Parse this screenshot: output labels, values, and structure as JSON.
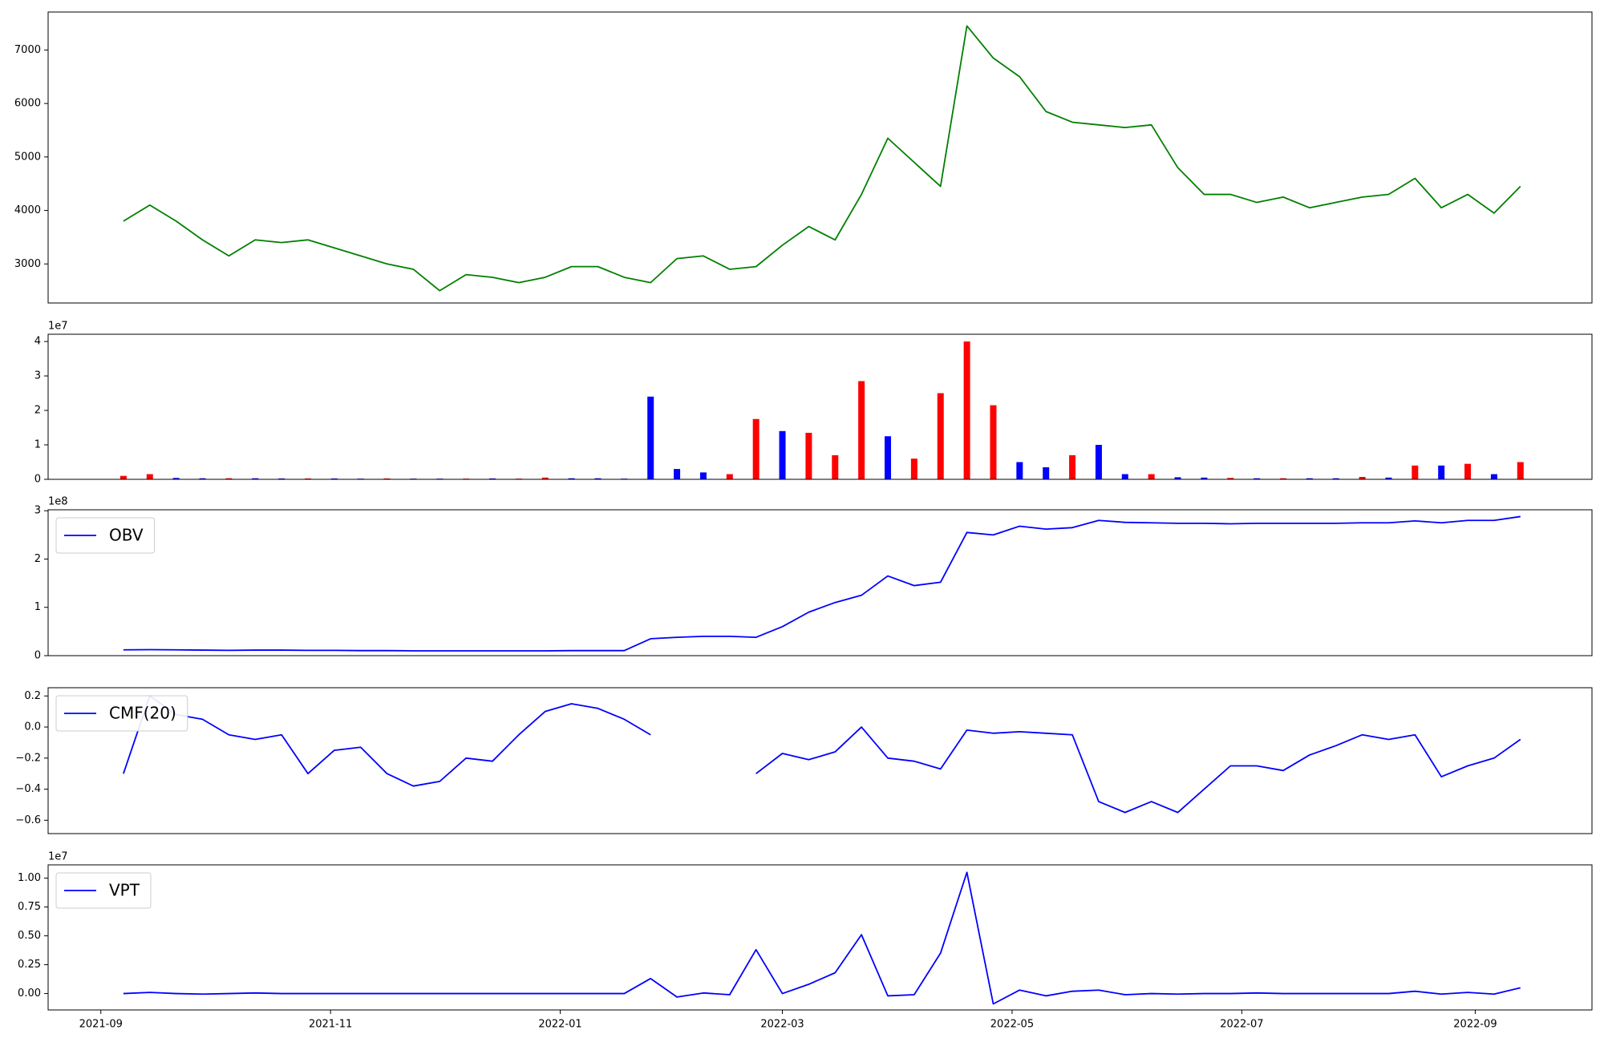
{
  "chart_data": [
    {
      "type": "line",
      "color": "#008000",
      "x": [
        "2021-09-07",
        "2021-09-14",
        "2021-09-21",
        "2021-09-28",
        "2021-10-05",
        "2021-10-12",
        "2021-10-19",
        "2021-10-26",
        "2021-11-02",
        "2021-11-09",
        "2021-11-16",
        "2021-11-23",
        "2021-11-30",
        "2021-12-07",
        "2021-12-14",
        "2021-12-21",
        "2021-12-28",
        "2022-01-04",
        "2022-01-11",
        "2022-01-18",
        "2022-01-25",
        "2022-02-01",
        "2022-02-08",
        "2022-02-15",
        "2022-02-22",
        "2022-03-01",
        "2022-03-08",
        "2022-03-15",
        "2022-03-22",
        "2022-03-29",
        "2022-04-05",
        "2022-04-12",
        "2022-04-19",
        "2022-04-26",
        "2022-05-03",
        "2022-05-10",
        "2022-05-17",
        "2022-05-24",
        "2022-05-31",
        "2022-06-07",
        "2022-06-14",
        "2022-06-21",
        "2022-06-28",
        "2022-07-05",
        "2022-07-12",
        "2022-07-19",
        "2022-07-26",
        "2022-08-02",
        "2022-08-09",
        "2022-08-16",
        "2022-08-23",
        "2022-08-30",
        "2022-09-06",
        "2022-09-13"
      ],
      "values": [
        3800,
        4100,
        3800,
        3450,
        3150,
        3450,
        3400,
        3450,
        3300,
        3150,
        3000,
        2900,
        2500,
        2800,
        2750,
        2650,
        2750,
        2950,
        2950,
        2750,
        2650,
        3100,
        3150,
        2900,
        2950,
        3350,
        3700,
        3450,
        4300,
        5350,
        4900,
        4450,
        7450,
        6850,
        6500,
        5850,
        5650,
        5600,
        5550,
        5600,
        4800,
        4300,
        4300,
        4150,
        4250,
        4050,
        4150,
        4250,
        4300,
        4600,
        4050,
        4300,
        3950,
        4450
      ],
      "xlim": [
        "2021-08-18",
        "2022-10-02"
      ],
      "ylim": [
        2270,
        7710
      ],
      "yticks": [
        3000,
        4000,
        5000,
        6000,
        7000
      ]
    },
    {
      "type": "bar",
      "y_offset_label": "1e7",
      "x": [
        "2021-09-07",
        "2021-09-14",
        "2021-09-21",
        "2021-09-28",
        "2021-10-05",
        "2021-10-12",
        "2021-10-19",
        "2021-10-26",
        "2021-11-02",
        "2021-11-09",
        "2021-11-16",
        "2021-11-23",
        "2021-11-30",
        "2021-12-07",
        "2021-12-14",
        "2021-12-21",
        "2021-12-28",
        "2022-01-04",
        "2022-01-11",
        "2022-01-18",
        "2022-01-25",
        "2022-02-01",
        "2022-02-08",
        "2022-02-15",
        "2022-02-22",
        "2022-03-01",
        "2022-03-08",
        "2022-03-15",
        "2022-03-22",
        "2022-03-29",
        "2022-04-05",
        "2022-04-12",
        "2022-04-19",
        "2022-04-26",
        "2022-05-03",
        "2022-05-10",
        "2022-05-17",
        "2022-05-24",
        "2022-05-31",
        "2022-06-07",
        "2022-06-14",
        "2022-06-21",
        "2022-06-28",
        "2022-07-05",
        "2022-07-12",
        "2022-07-19",
        "2022-07-26",
        "2022-08-02",
        "2022-08-09",
        "2022-08-16",
        "2022-08-23",
        "2022-08-30",
        "2022-09-06",
        "2022-09-13"
      ],
      "values": [
        1000000,
        1500000,
        400000,
        300000,
        300000,
        300000,
        250000,
        250000,
        250000,
        200000,
        250000,
        200000,
        200000,
        200000,
        250000,
        200000,
        500000,
        300000,
        300000,
        200000,
        24000000,
        3000000,
        2000000,
        1500000,
        17500000,
        14000000,
        13500000,
        7000000,
        28500000,
        12500000,
        6000000,
        25000000,
        40000000,
        21500000,
        5000000,
        3500000,
        7000000,
        10000000,
        1500000,
        1500000,
        600000,
        500000,
        400000,
        300000,
        300000,
        300000,
        300000,
        700000,
        500000,
        4000000,
        4000000,
        4500000,
        1500000,
        5000000
      ],
      "bar_colors": [
        "#ff0000",
        "#ff0000",
        "#0000ff",
        "#0000ff",
        "#ff0000",
        "#0000ff",
        "#0000ff",
        "#ff0000",
        "#0000ff",
        "#0000ff",
        "#ff0000",
        "#0000ff",
        "#0000ff",
        "#ff0000",
        "#0000ff",
        "#ff0000",
        "#ff0000",
        "#0000ff",
        "#0000ff",
        "#0000ff",
        "#0000ff",
        "#0000ff",
        "#0000ff",
        "#ff0000",
        "#ff0000",
        "#0000ff",
        "#ff0000",
        "#ff0000",
        "#ff0000",
        "#0000ff",
        "#ff0000",
        "#ff0000",
        "#ff0000",
        "#ff0000",
        "#0000ff",
        "#0000ff",
        "#ff0000",
        "#0000ff",
        "#0000ff",
        "#ff0000",
        "#0000ff",
        "#0000ff",
        "#ff0000",
        "#0000ff",
        "#ff0000",
        "#0000ff",
        "#0000ff",
        "#ff0000",
        "#0000ff",
        "#ff0000",
        "#0000ff",
        "#ff0000",
        "#0000ff",
        "#ff0000"
      ],
      "xlim": [
        "2021-08-18",
        "2022-10-02"
      ],
      "ylim": [
        0,
        42100000
      ],
      "yticks": [
        0,
        {
          "value": 10000000,
          "label": "1"
        },
        {
          "value": 20000000,
          "label": "2"
        },
        {
          "value": 30000000,
          "label": "3"
        },
        {
          "value": 40000000,
          "label": "4"
        }
      ]
    },
    {
      "type": "line",
      "legend": "upper left",
      "y_offset_label": "1e8",
      "x": [
        "2021-09-07",
        "2021-09-14",
        "2021-09-21",
        "2021-09-28",
        "2021-10-05",
        "2021-10-12",
        "2021-10-19",
        "2021-10-26",
        "2021-11-02",
        "2021-11-09",
        "2021-11-16",
        "2021-11-23",
        "2021-11-30",
        "2021-12-07",
        "2021-12-14",
        "2021-12-21",
        "2021-12-28",
        "2022-01-04",
        "2022-01-11",
        "2022-01-18",
        "2022-01-25",
        "2022-02-01",
        "2022-02-08",
        "2022-02-15",
        "2022-02-22",
        "2022-03-01",
        "2022-03-08",
        "2022-03-15",
        "2022-03-22",
        "2022-03-29",
        "2022-04-05",
        "2022-04-12",
        "2022-04-19",
        "2022-04-26",
        "2022-05-03",
        "2022-05-10",
        "2022-05-17",
        "2022-05-24",
        "2022-05-31",
        "2022-06-07",
        "2022-06-14",
        "2022-06-21",
        "2022-06-28",
        "2022-07-05",
        "2022-07-12",
        "2022-07-19",
        "2022-07-26",
        "2022-08-02",
        "2022-08-09",
        "2022-08-16",
        "2022-08-23",
        "2022-08-30",
        "2022-09-06",
        "2022-09-13"
      ],
      "series": [
        {
          "name": "OBV",
          "color": "#0000ff",
          "values": [
            12000000,
            12500000,
            12000000,
            11500000,
            11000000,
            11500000,
            11500000,
            11000000,
            11000000,
            10500000,
            10500000,
            10000000,
            10000000,
            10000000,
            10000000,
            10000000,
            10000000,
            10500000,
            10500000,
            10500000,
            35000000,
            38000000,
            40000000,
            40000000,
            38000000,
            60000000,
            90000000,
            110000000,
            125000000,
            165000000,
            145000000,
            152000000,
            255000000,
            250000000,
            268000000,
            262000000,
            265000000,
            280000000,
            276000000,
            275000000,
            274000000,
            274000000,
            273000000,
            274000000,
            274000000,
            274000000,
            274000000,
            275000000,
            275000000,
            279000000,
            275000000,
            280000000,
            280000000,
            288000000
          ]
        }
      ],
      "xlim": [
        "2021-08-18",
        "2022-10-02"
      ],
      "ylim": [
        0,
        302000000
      ],
      "yticks": [
        0,
        {
          "value": 100000000,
          "label": "1"
        },
        {
          "value": 200000000,
          "label": "2"
        },
        {
          "value": 300000000,
          "label": "3"
        }
      ]
    },
    {
      "type": "line",
      "legend": "upper left",
      "x": [
        "2021-09-07",
        "2021-09-14",
        "2021-09-21",
        "2021-09-28",
        "2021-10-05",
        "2021-10-12",
        "2021-10-19",
        "2021-10-26",
        "2021-11-02",
        "2021-11-09",
        "2021-11-16",
        "2021-11-23",
        "2021-11-30",
        "2021-12-07",
        "2021-12-14",
        "2021-12-21",
        "2021-12-28",
        "2022-01-04",
        "2022-01-11",
        "2022-01-18",
        "2022-01-25",
        "2022-02-01",
        "2022-02-08",
        "2022-02-15",
        "2022-02-22",
        "2022-03-01",
        "2022-03-08",
        "2022-03-15",
        "2022-03-22",
        "2022-03-29",
        "2022-04-05",
        "2022-04-12",
        "2022-04-19",
        "2022-04-26",
        "2022-05-03",
        "2022-05-10",
        "2022-05-17",
        "2022-05-24",
        "2022-05-31",
        "2022-06-07",
        "2022-06-14",
        "2022-06-21",
        "2022-06-28",
        "2022-07-05",
        "2022-07-12",
        "2022-07-19",
        "2022-07-26",
        "2022-08-02",
        "2022-08-09",
        "2022-08-16",
        "2022-08-23",
        "2022-08-30",
        "2022-09-06",
        "2022-09-13"
      ],
      "series": [
        {
          "name": "CMF(20)",
          "color": "#0000ff",
          "values": [
            -0.3,
            0.2,
            0.08,
            0.05,
            -0.05,
            -0.08,
            -0.05,
            -0.3,
            -0.15,
            -0.13,
            -0.3,
            -0.38,
            -0.35,
            -0.2,
            -0.22,
            -0.05,
            0.1,
            0.15,
            0.12,
            0.05,
            -0.05,
            null,
            null,
            null,
            -0.3,
            -0.17,
            -0.21,
            -0.16,
            0.0,
            -0.2,
            -0.22,
            -0.27,
            -0.02,
            -0.04,
            -0.03,
            -0.04,
            -0.05,
            -0.48,
            -0.55,
            -0.48,
            -0.55,
            -0.4,
            -0.25,
            -0.25,
            -0.28,
            -0.18,
            -0.12,
            -0.05,
            -0.08,
            -0.05,
            -0.32,
            -0.25,
            -0.2,
            -0.08
          ]
        }
      ],
      "xlim": [
        "2021-08-18",
        "2022-10-02"
      ],
      "ylim": [
        -0.686,
        0.253
      ],
      "yticks": [
        {
          "value": -0.6,
          "label": "−0.6"
        },
        {
          "value": -0.4,
          "label": "−0.4"
        },
        {
          "value": -0.2,
          "label": "−0.2"
        },
        {
          "value": 0,
          "label": "0.0"
        },
        0.2
      ]
    },
    {
      "type": "line",
      "legend": "upper left",
      "y_offset_label": "1e7",
      "x": [
        "2021-09-07",
        "2021-09-14",
        "2021-09-21",
        "2021-09-28",
        "2021-10-05",
        "2021-10-12",
        "2021-10-19",
        "2021-10-26",
        "2021-11-02",
        "2021-11-09",
        "2021-11-16",
        "2021-11-23",
        "2021-11-30",
        "2021-12-07",
        "2021-12-14",
        "2021-12-21",
        "2021-12-28",
        "2022-01-04",
        "2022-01-11",
        "2022-01-18",
        "2022-01-25",
        "2022-02-01",
        "2022-02-08",
        "2022-02-15",
        "2022-02-22",
        "2022-03-01",
        "2022-03-08",
        "2022-03-15",
        "2022-03-22",
        "2022-03-29",
        "2022-04-05",
        "2022-04-12",
        "2022-04-19",
        "2022-04-26",
        "2022-05-03",
        "2022-05-10",
        "2022-05-17",
        "2022-05-24",
        "2022-05-31",
        "2022-06-07",
        "2022-06-14",
        "2022-06-21",
        "2022-06-28",
        "2022-07-05",
        "2022-07-12",
        "2022-07-19",
        "2022-07-26",
        "2022-08-02",
        "2022-08-09",
        "2022-08-16",
        "2022-08-23",
        "2022-08-30",
        "2022-09-06",
        "2022-09-13"
      ],
      "series": [
        {
          "name": "VPT",
          "color": "#0000ff",
          "values": [
            0,
            100000,
            0,
            -50000,
            0,
            50000,
            0,
            0,
            0,
            0,
            0,
            0,
            0,
            0,
            0,
            0,
            0,
            0,
            0,
            0,
            1300000,
            -300000,
            50000,
            -100000,
            3800000,
            0,
            800000,
            1800000,
            5100000,
            -200000,
            -100000,
            3500000,
            10500000,
            -900000,
            300000,
            -200000,
            200000,
            300000,
            -100000,
            0,
            -50000,
            0,
            0,
            50000,
            0,
            0,
            0,
            0,
            0,
            200000,
            -50000,
            100000,
            -50000,
            500000
          ]
        }
      ],
      "xlim": [
        "2021-08-18",
        "2022-10-02"
      ],
      "ylim": [
        -1420000,
        11150000
      ],
      "yticks": [
        {
          "value": 0,
          "label": "0.00"
        },
        {
          "value": 2500000,
          "label": "0.25"
        },
        {
          "value": 5000000,
          "label": "0.50"
        },
        {
          "value": 7500000,
          "label": "0.75"
        },
        {
          "value": 10000000,
          "label": "1.00"
        }
      ],
      "xticks": [
        {
          "value": "2021-09-01",
          "label": "2021-09"
        },
        {
          "value": "2021-11-01",
          "label": "2021-11"
        },
        {
          "value": "2022-01-01",
          "label": "2022-01"
        },
        {
          "value": "2022-03-01",
          "label": "2022-03"
        },
        {
          "value": "2022-05-01",
          "label": "2022-05"
        },
        {
          "value": "2022-07-01",
          "label": "2022-07"
        },
        {
          "value": "2022-09-01",
          "label": "2022-09"
        }
      ]
    }
  ]
}
